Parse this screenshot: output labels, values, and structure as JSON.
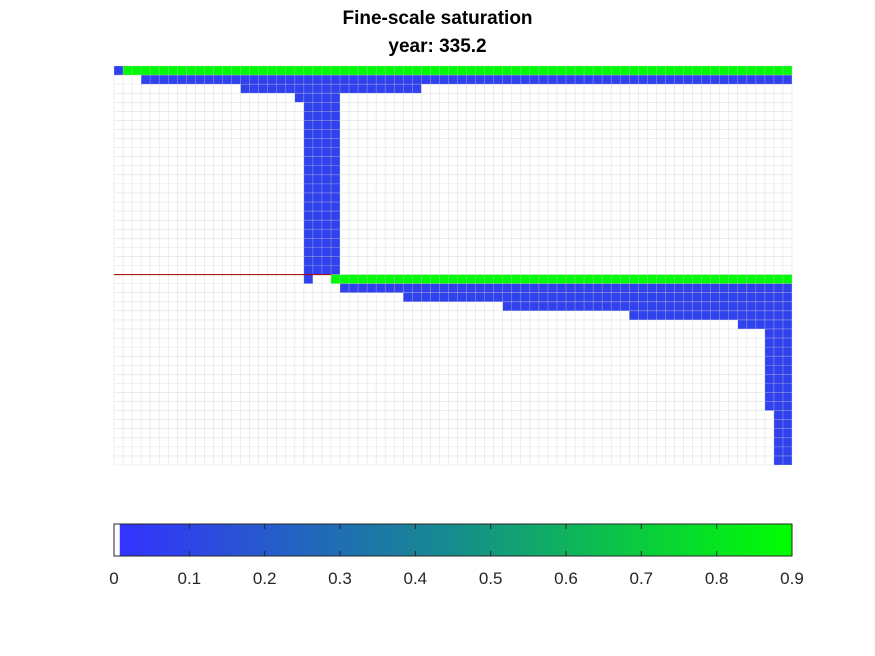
{
  "chart_data": {
    "type": "heatmap",
    "title": "Fine-scale saturation",
    "subtitle": "year: 335.2",
    "grid": true,
    "colorbar": {
      "placement": "bottom",
      "range": [
        0,
        0.9
      ],
      "ticks": [
        "0",
        "0.1",
        "0.2",
        "0.3",
        "0.4",
        "0.5",
        "0.6",
        "0.7",
        "0.8",
        "0.9"
      ],
      "colors": [
        "#ffffff",
        "#3333ff",
        "#00ff00"
      ]
    },
    "grid_cols": 75,
    "grid_rows": 44,
    "interface_row": 23,
    "interface_color": "#aa0000",
    "regions": [
      {
        "name": "upper-top-band-left",
        "col0": 0,
        "col1": 1,
        "row0": 0,
        "row1": 1,
        "value": 0.05
      },
      {
        "name": "upper-top-band",
        "col0": 1,
        "col1": 75,
        "row0": 0,
        "row1": 1,
        "value": 0.88
      },
      {
        "name": "upper-second-row",
        "col0": 3,
        "col1": 75,
        "row0": 1,
        "row1": 2,
        "value": 0.06
      },
      {
        "name": "upper-third-row",
        "col0": 14,
        "col1": 34,
        "row0": 2,
        "row1": 3,
        "value": 0.06
      },
      {
        "name": "column-step",
        "col0": 20,
        "col1": 21,
        "row0": 3,
        "row1": 4,
        "value": 0.06
      },
      {
        "name": "vertical-column",
        "col0": 21,
        "col1": 25,
        "row0": 3,
        "row1": 23,
        "value": 0.06
      },
      {
        "name": "lower-top-band",
        "col0": 24,
        "col1": 75,
        "row0": 23,
        "row1": 24,
        "value": 0.88
      },
      {
        "name": "lower-second-row",
        "col0": 25,
        "col1": 75,
        "row0": 24,
        "row1": 25,
        "value": 0.06
      },
      {
        "name": "lower-third-row",
        "col0": 32,
        "col1": 75,
        "row0": 25,
        "row1": 26,
        "value": 0.06
      },
      {
        "name": "lower-fourth-row",
        "col0": 43,
        "col1": 75,
        "row0": 26,
        "row1": 27,
        "value": 0.06
      },
      {
        "name": "lower-fifth-row",
        "col0": 57,
        "col1": 75,
        "row0": 27,
        "row1": 28,
        "value": 0.06
      },
      {
        "name": "lower-sixth-row",
        "col0": 69,
        "col1": 75,
        "row0": 28,
        "row1": 29,
        "value": 0.06
      },
      {
        "name": "right-column-a",
        "col0": 72,
        "col1": 73,
        "row0": 29,
        "row1": 38,
        "value": 0.06
      },
      {
        "name": "right-column-b",
        "col0": 73,
        "col1": 75,
        "row0": 29,
        "row1": 44,
        "value": 0.06
      },
      {
        "name": "column-bottom-cell",
        "col0": 21,
        "col1": 22,
        "row0": 23,
        "row1": 24,
        "value": 0.06
      }
    ]
  }
}
